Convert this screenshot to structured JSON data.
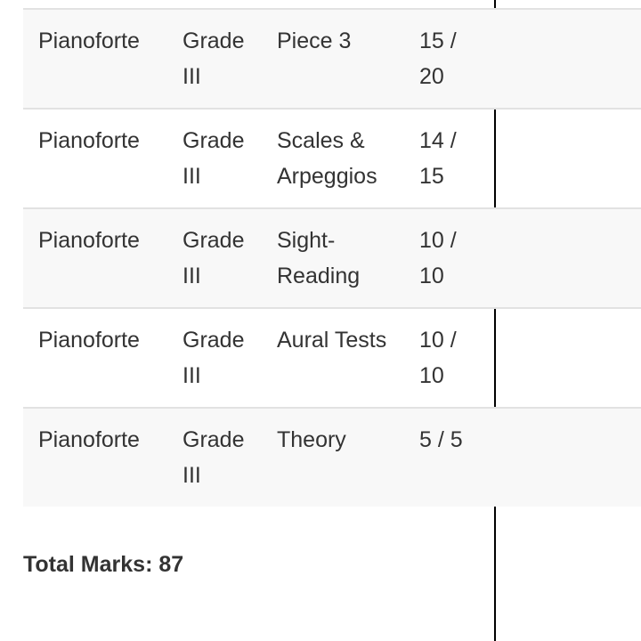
{
  "rows": [
    {
      "instrument": "Pianoforte",
      "grade": "Grade III",
      "component": "Piece 3",
      "marks": "15 / 20"
    },
    {
      "instrument": "Pianoforte",
      "grade": "Grade III",
      "component": "Scales & Arpeggios",
      "marks": "14 / 15"
    },
    {
      "instrument": "Pianoforte",
      "grade": "Grade III",
      "component": "Sight-Reading",
      "marks": "10 / 10"
    },
    {
      "instrument": "Pianoforte",
      "grade": "Grade III",
      "component": "Aural Tests",
      "marks": "10 / 10"
    },
    {
      "instrument": "Pianoforte",
      "grade": "Grade III",
      "component": "Theory",
      "marks": "5 / 5"
    }
  ],
  "total": "Total Marks: 87",
  "colors": {
    "row_alt": "#f8f8f8",
    "border": "#e2e2e2",
    "text": "#333333"
  }
}
